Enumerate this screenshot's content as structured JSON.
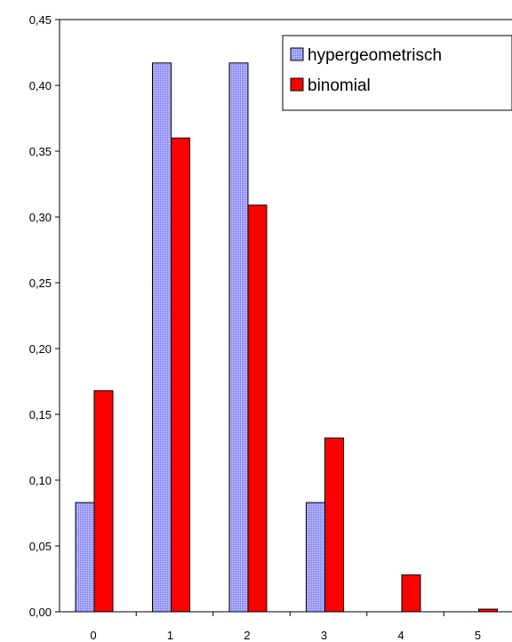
{
  "chart_data": {
    "type": "bar",
    "categories": [
      "0",
      "1",
      "2",
      "3",
      "4",
      "5"
    ],
    "series": [
      {
        "name": "hypergeometrisch",
        "values": [
          0.083,
          0.417,
          0.417,
          0.083,
          0.0,
          0.0
        ],
        "color": "#9999ff",
        "pattern": "dotted"
      },
      {
        "name": "binomial",
        "values": [
          0.168,
          0.36,
          0.309,
          0.132,
          0.028,
          0.002
        ],
        "color": "#ff0000"
      }
    ],
    "ylim": [
      0,
      0.45
    ],
    "y_ticks": [
      "0,00",
      "0,05",
      "0,10",
      "0,15",
      "0,20",
      "0,25",
      "0,30",
      "0,35",
      "0,40",
      "0,45"
    ],
    "title": "",
    "xlabel": "",
    "ylabel": "",
    "grid": false,
    "legend_position": "top-right"
  }
}
